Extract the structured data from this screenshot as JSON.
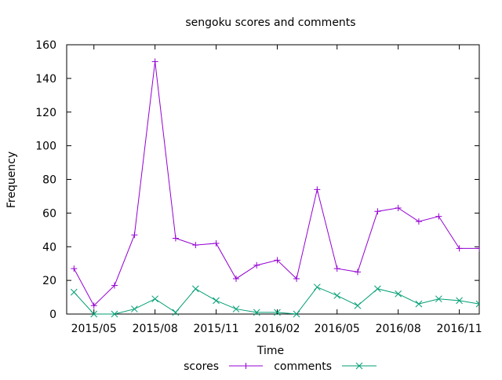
{
  "chart_data": {
    "type": "line",
    "title": "sengoku scores and comments",
    "xlabel": "Time",
    "ylabel": "Frequency",
    "x": [
      "2015-04-01",
      "2015-05-01",
      "2015-06-01",
      "2015-07-01",
      "2015-08-01",
      "2015-09-01",
      "2015-10-01",
      "2015-11-01",
      "2015-12-01",
      "2016-01-01",
      "2016-02-01",
      "2016-03-01",
      "2016-04-01",
      "2016-05-01",
      "2016-06-01",
      "2016-07-01",
      "2016-08-01",
      "2016-09-01",
      "2016-10-01",
      "2016-11-01",
      "2016-12-01"
    ],
    "xlim": [
      "2015-03-21",
      "2016-12-01"
    ],
    "xticks": [
      {
        "value": "2015-05-01",
        "label": "2015/05"
      },
      {
        "value": "2015-08-01",
        "label": "2015/08"
      },
      {
        "value": "2015-11-01",
        "label": "2015/11"
      },
      {
        "value": "2016-02-01",
        "label": "2016/02"
      },
      {
        "value": "2016-05-01",
        "label": "2016/05"
      },
      {
        "value": "2016-08-01",
        "label": "2016/08"
      },
      {
        "value": "2016-11-01",
        "label": "2016/11"
      }
    ],
    "ylim": [
      0,
      160
    ],
    "yticks": [
      "0",
      "20",
      "40",
      "60",
      "80",
      "100",
      "120",
      "140",
      "160"
    ],
    "grid": false,
    "legend_position": "bottom",
    "series": [
      {
        "name": "scores",
        "color": "#9400d3",
        "marker": "plus",
        "values": [
          27,
          5,
          17,
          47,
          150,
          45,
          41,
          42,
          21,
          29,
          32,
          21,
          74,
          27,
          25,
          61,
          63,
          55,
          58,
          39,
          39
        ]
      },
      {
        "name": "comments",
        "color": "#009e73",
        "marker": "cross",
        "values": [
          13,
          0,
          0,
          3,
          9,
          1,
          15,
          8,
          3,
          1,
          1,
          0,
          16,
          11,
          5,
          15,
          12,
          6,
          9,
          8,
          6
        ]
      }
    ]
  }
}
